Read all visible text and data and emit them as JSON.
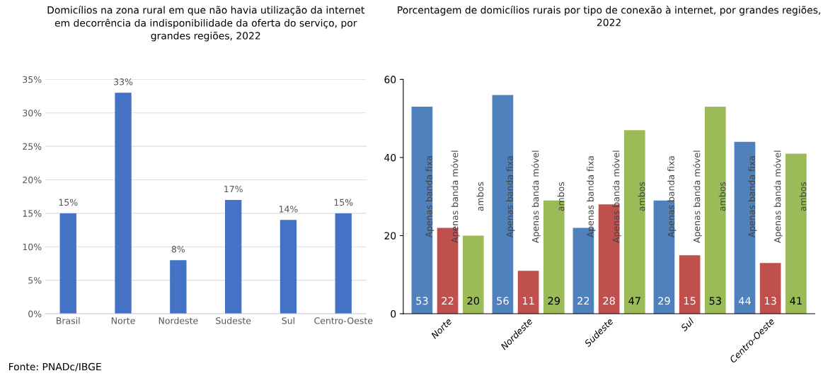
{
  "chart_data": [
    {
      "type": "bar",
      "title": "Domicílios na zona rural em que não havia utilização da internet\nem decorrência da indisponibilidade da oferta do serviço, por\ngrandes regiões, 2022",
      "categories": [
        "Brasil",
        "Norte",
        "Nordeste",
        "Sudeste",
        "Sul",
        "Centro-Oeste"
      ],
      "values": [
        15,
        33,
        8,
        17,
        14,
        15
      ],
      "color": "#4472c4",
      "value_labels": [
        "15%",
        "33%",
        "8%",
        "17%",
        "14%",
        "15%"
      ],
      "ylim": [
        0,
        35
      ],
      "yticks": [
        {
          "value": 0,
          "label": "0%"
        },
        {
          "value": 5,
          "label": "5%"
        },
        {
          "value": 10,
          "label": "10%"
        },
        {
          "value": 15,
          "label": "15%"
        },
        {
          "value": 20,
          "label": "20%"
        },
        {
          "value": 25,
          "label": "25%"
        },
        {
          "value": 30,
          "label": "30%"
        },
        {
          "value": 35,
          "label": "35%"
        }
      ],
      "grid": "y",
      "legend": false,
      "annotations": [
        "Fonte: PNADc/IBGE"
      ]
    },
    {
      "type": "bar",
      "title": "Porcentagem de domicílios rurais por tipo de conexão à internet, por grandes regiões,\n2022",
      "categories": [
        "Norte",
        "Nordeste",
        "Sudeste",
        "Sul",
        "Centro-Oeste"
      ],
      "series": [
        {
          "name": "Apenas banda fixa",
          "color": "#4f81bd",
          "values": [
            53,
            56,
            22,
            29,
            44
          ]
        },
        {
          "name": "Apenas banda móvel",
          "color": "#c0504d",
          "values": [
            22,
            11,
            28,
            15,
            13
          ]
        },
        {
          "name": "ambos",
          "color": "#9bbb59",
          "values": [
            20,
            29,
            47,
            53,
            41
          ]
        }
      ],
      "ylim": [
        0,
        60
      ],
      "yticks": [
        0,
        20,
        40,
        60
      ],
      "data_labels": true,
      "grid": false,
      "legend": false
    }
  ]
}
